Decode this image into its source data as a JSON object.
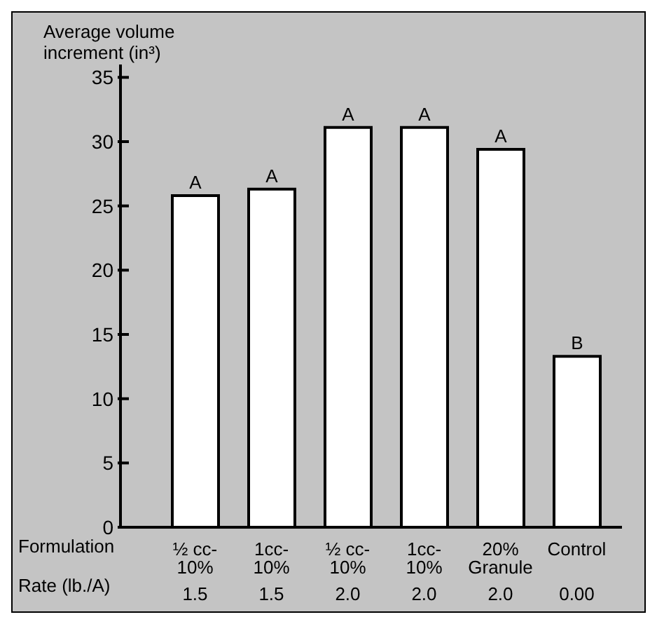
{
  "chart_data": {
    "type": "bar",
    "ylabel": "Average volume\nincrement (in³)",
    "categories": [
      "½ cc-\n10%\n1.5",
      "1cc-\n10%\n1.5",
      "½ cc-\n10%\n2.0",
      "1cc-\n10%\n2.0",
      "20%\nGranule\n2.0",
      "Control\n\n0.00"
    ],
    "values": [
      25.8,
      26.3,
      31.1,
      31.1,
      29.4,
      13.3
    ],
    "color": "#ffffff",
    "value_labels": [
      "A",
      "A",
      "A",
      "A",
      "A",
      "B"
    ],
    "ylim": [
      0,
      36
    ],
    "yticks": [
      0,
      5,
      10,
      15,
      20,
      25,
      30,
      35
    ],
    "annotations": [
      "Formulation",
      "Rate (lb./A)"
    ]
  }
}
